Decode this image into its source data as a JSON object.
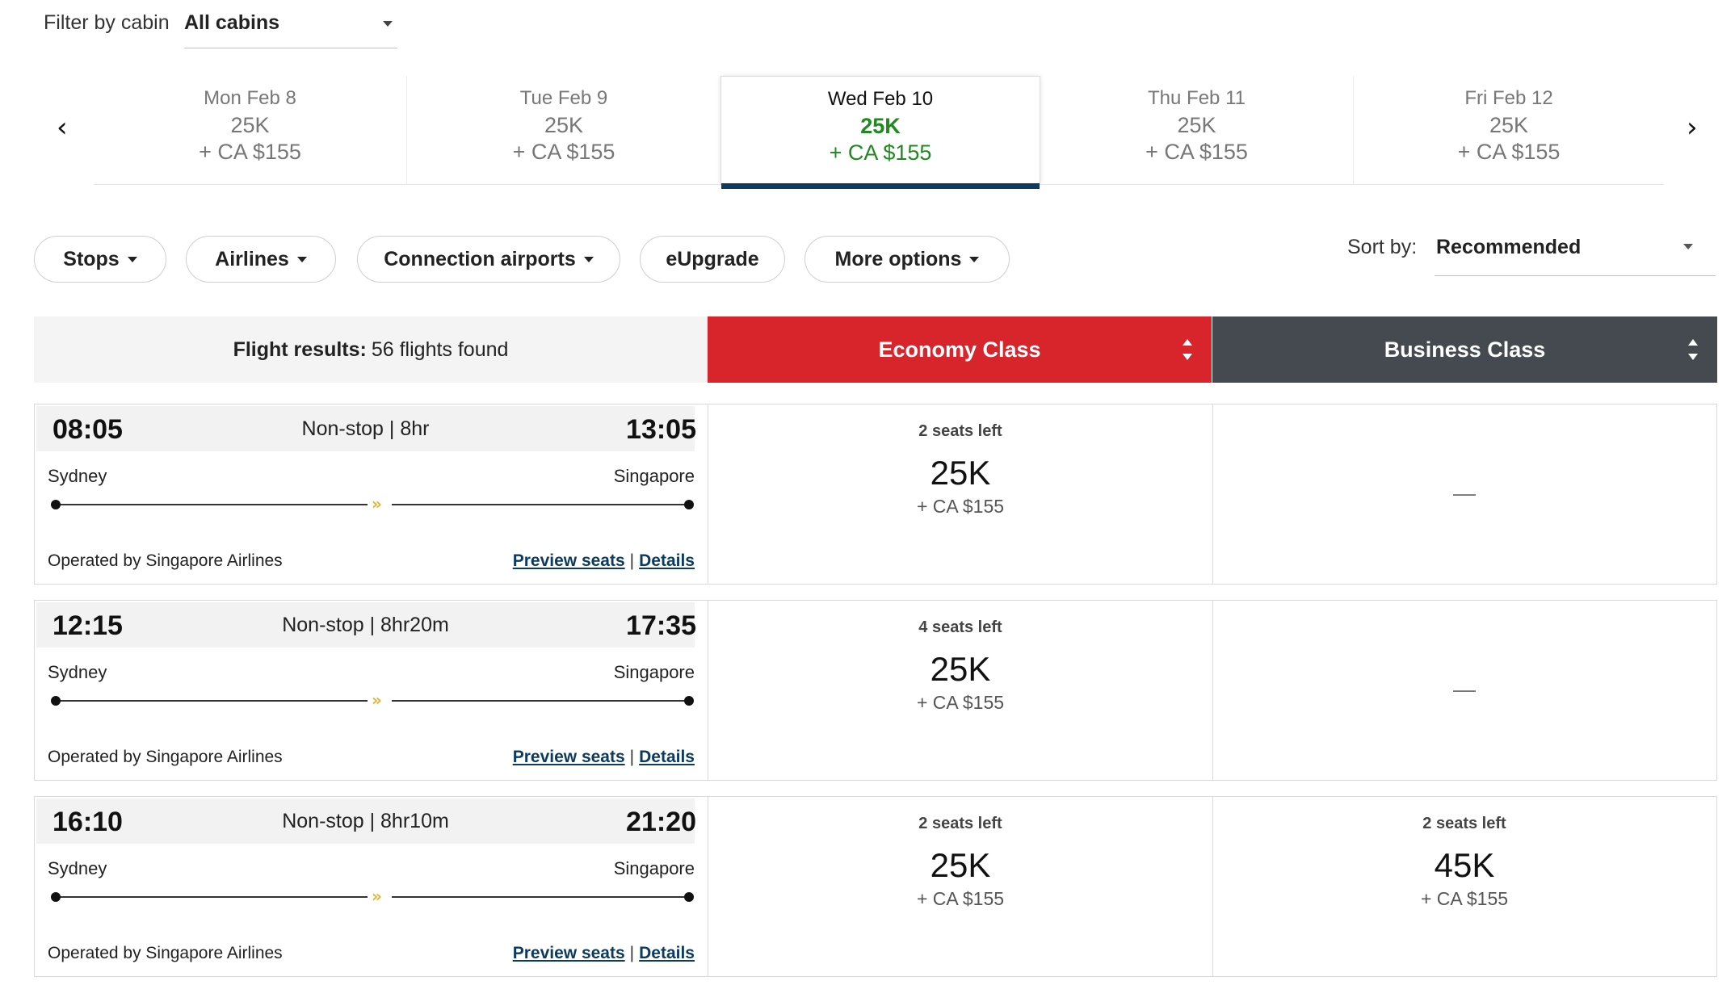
{
  "filter": {
    "label": "Filter by cabin",
    "selected": "All cabins"
  },
  "dates": [
    {
      "day": "Mon Feb 8",
      "points": "25K",
      "cash": "+ CA $155"
    },
    {
      "day": "Tue Feb 9",
      "points": "25K",
      "cash": "+ CA $155"
    },
    {
      "day": "Wed Feb 10",
      "points": "25K",
      "cash": "+ CA $155"
    },
    {
      "day": "Thu Feb 11",
      "points": "25K",
      "cash": "+ CA $155"
    },
    {
      "day": "Fri Feb 12",
      "points": "25K",
      "cash": "+ CA $155"
    }
  ],
  "active_date_index": 2,
  "pills": {
    "stops": "Stops",
    "airlines": "Airlines",
    "connections": "Connection airports",
    "eupgrade": "eUpgrade",
    "more": "More options"
  },
  "sort": {
    "label": "Sort by:",
    "selected": "Recommended"
  },
  "results": {
    "label": "Flight results:",
    "count": "56 flights found"
  },
  "classes": {
    "economy": "Economy Class",
    "business": "Business Class"
  },
  "colors": {
    "economy_header": "#d8252c",
    "business_header": "#454a50",
    "active_date": "#1f8a1f",
    "active_bar": "#0d3b60"
  },
  "flights": [
    {
      "dep": "08:05",
      "arr": "13:05",
      "duration": "Non-stop | 8hr",
      "from": "Sydney",
      "to": "Singapore",
      "operator": "Operated by Singapore Airlines",
      "preview": "Preview seats",
      "details": "Details",
      "economy": {
        "seats": "2 seats left",
        "points": "25K",
        "cash": "+ CA $155"
      },
      "business": {
        "dash": "—"
      }
    },
    {
      "dep": "12:15",
      "arr": "17:35",
      "duration": "Non-stop | 8hr20m",
      "from": "Sydney",
      "to": "Singapore",
      "operator": "Operated by Singapore Airlines",
      "preview": "Preview seats",
      "details": "Details",
      "economy": {
        "seats": "4 seats left",
        "points": "25K",
        "cash": "+ CA $155"
      },
      "business": {
        "dash": "—"
      }
    },
    {
      "dep": "16:10",
      "arr": "21:20",
      "duration": "Non-stop | 8hr10m",
      "from": "Sydney",
      "to": "Singapore",
      "operator": "Operated by Singapore Airlines",
      "preview": "Preview seats",
      "details": "Details",
      "economy": {
        "seats": "2 seats left",
        "points": "25K",
        "cash": "+ CA $155"
      },
      "business": {
        "seats": "2 seats left",
        "points": "45K",
        "cash": "+ CA $155"
      }
    }
  ],
  "icons": {
    "prev": "chevron-left-icon",
    "next": "chevron-right-icon",
    "airline": "singapore-airlines-logo-icon"
  }
}
